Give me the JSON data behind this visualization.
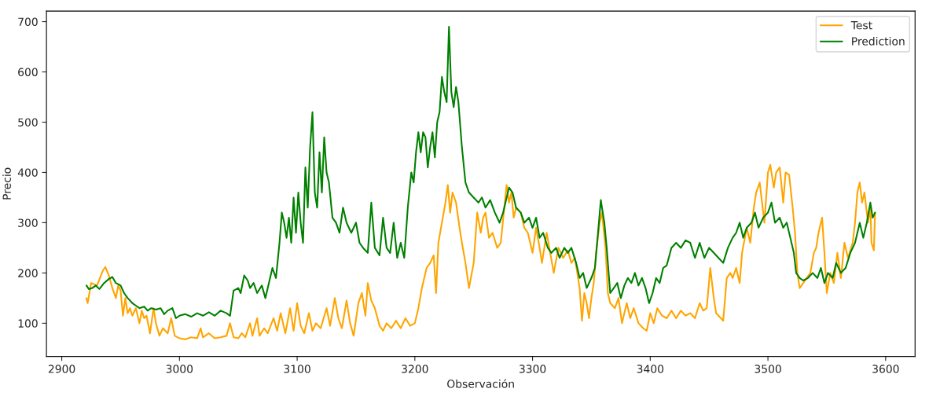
{
  "chart_data": {
    "type": "line",
    "xlabel": "Observación",
    "ylabel": "Precio",
    "xlim": [
      2887,
      3625
    ],
    "xticks": [
      2900,
      3000,
      3100,
      3200,
      3300,
      3400,
      3500,
      3600
    ],
    "ylim": [
      34,
      721
    ],
    "yticks": [
      100,
      200,
      300,
      400,
      500,
      600,
      700
    ],
    "grid": false,
    "legend": "top right",
    "marker": "none",
    "line_style": "solid",
    "series": [
      {
        "name": "Test",
        "color": "#ffa500",
        "x": [
          2921,
          2922,
          2925,
          2930,
          2935,
          2937,
          2940,
          2943,
          2946,
          2948,
          2950,
          2952,
          2954,
          2956,
          2958,
          2960,
          2963,
          2966,
          2968,
          2970,
          2972,
          2975,
          2978,
          2980,
          2983,
          2986,
          2990,
          2993,
          2996,
          3000,
          3005,
          3010,
          3015,
          3018,
          3020,
          3025,
          3030,
          3035,
          3040,
          3043,
          3046,
          3050,
          3053,
          3056,
          3060,
          3062,
          3066,
          3068,
          3072,
          3075,
          3080,
          3083,
          3086,
          3090,
          3094,
          3097,
          3100,
          3103,
          3106,
          3110,
          3113,
          3116,
          3120,
          3125,
          3128,
          3132,
          3135,
          3138,
          3142,
          3145,
          3148,
          3152,
          3155,
          3158,
          3160,
          3163,
          3166,
          3170,
          3173,
          3176,
          3180,
          3184,
          3188,
          3192,
          3196,
          3200,
          3203,
          3206,
          3210,
          3213,
          3216,
          3218,
          3220,
          3223,
          3226,
          3228,
          3230,
          3232,
          3235,
          3238,
          3240,
          3243,
          3246,
          3250,
          3253,
          3256,
          3258,
          3260,
          3263,
          3266,
          3270,
          3273,
          3276,
          3278,
          3280,
          3282,
          3284,
          3286,
          3290,
          3293,
          3296,
          3300,
          3303,
          3306,
          3308,
          3312,
          3315,
          3318,
          3322,
          3326,
          3330,
          3333,
          3336,
          3338,
          3340,
          3342,
          3344,
          3346,
          3348,
          3350,
          3352,
          3354,
          3357,
          3359,
          3362,
          3364,
          3366,
          3370,
          3373,
          3376,
          3380,
          3383,
          3386,
          3390,
          3394,
          3397,
          3400,
          3403,
          3406,
          3410,
          3414,
          3418,
          3422,
          3426,
          3430,
          3434,
          3438,
          3442,
          3445,
          3448,
          3451,
          3454,
          3456,
          3460,
          3462,
          3465,
          3468,
          3470,
          3473,
          3476,
          3478,
          3482,
          3485,
          3488,
          3490,
          3493,
          3495,
          3497,
          3500,
          3502,
          3505,
          3507,
          3510,
          3513,
          3515,
          3518,
          3521,
          3523,
          3525,
          3527,
          3530,
          3533,
          3536,
          3539,
          3541,
          3543,
          3546,
          3548,
          3550,
          3553,
          3556,
          3559,
          3562,
          3565,
          3568,
          3572,
          3574,
          3576,
          3578,
          3580,
          3582,
          3585,
          3587,
          3588,
          3590,
          3591
        ],
        "values": [
          150,
          140,
          180,
          175,
          205,
          212,
          195,
          170,
          150,
          175,
          165,
          115,
          150,
          120,
          130,
          115,
          130,
          100,
          125,
          110,
          115,
          80,
          130,
          100,
          75,
          90,
          80,
          110,
          75,
          70,
          68,
          72,
          70,
          90,
          72,
          80,
          70,
          72,
          75,
          100,
          72,
          70,
          80,
          72,
          100,
          75,
          110,
          75,
          90,
          80,
          110,
          85,
          120,
          80,
          130,
          85,
          140,
          95,
          80,
          120,
          85,
          100,
          90,
          130,
          95,
          150,
          110,
          90,
          145,
          100,
          75,
          140,
          160,
          115,
          180,
          145,
          130,
          95,
          85,
          100,
          90,
          105,
          90,
          110,
          95,
          100,
          130,
          170,
          210,
          220,
          235,
          160,
          260,
          300,
          340,
          375,
          320,
          360,
          340,
          290,
          260,
          220,
          170,
          220,
          320,
          280,
          310,
          320,
          270,
          280,
          250,
          260,
          330,
          375,
          340,
          360,
          310,
          330,
          320,
          290,
          280,
          240,
          290,
          250,
          220,
          280,
          240,
          200,
          250,
          230,
          245,
          220,
          230,
          200,
          170,
          105,
          160,
          140,
          110,
          150,
          180,
          240,
          300,
          320,
          250,
          160,
          140,
          130,
          150,
          100,
          140,
          110,
          130,
          100,
          90,
          85,
          120,
          100,
          130,
          115,
          110,
          125,
          110,
          125,
          115,
          120,
          110,
          140,
          125,
          130,
          210,
          150,
          120,
          110,
          105,
          190,
          200,
          190,
          210,
          180,
          240,
          290,
          260,
          330,
          360,
          380,
          340,
          300,
          400,
          415,
          370,
          400,
          410,
          340,
          400,
          395,
          330,
          280,
          200,
          170,
          180,
          190,
          200,
          240,
          250,
          280,
          310,
          240,
          160,
          200,
          180,
          240,
          190,
          260,
          230,
          260,
          300,
          360,
          380,
          340,
          360,
          300,
          330,
          260,
          245,
          320
        ]
      },
      {
        "name": "Prediction",
        "color": "#008000",
        "x": [
          2921,
          2923,
          2926,
          2929,
          2932,
          2936,
          2940,
          2943,
          2946,
          2950,
          2953,
          2956,
          2960,
          2963,
          2966,
          2970,
          2973,
          2976,
          2980,
          2984,
          2987,
          2990,
          2994,
          2997,
          3000,
          3005,
          3010,
          3015,
          3020,
          3025,
          3030,
          3035,
          3040,
          3043,
          3046,
          3050,
          3052,
          3055,
          3058,
          3060,
          3063,
          3066,
          3070,
          3073,
          3076,
          3079,
          3082,
          3085,
          3087,
          3089,
          3091,
          3093,
          3095,
          3097,
          3099,
          3101,
          3103,
          3105,
          3107,
          3109,
          3111,
          3113,
          3115,
          3117,
          3119,
          3121,
          3123,
          3125,
          3127,
          3130,
          3133,
          3136,
          3139,
          3142,
          3146,
          3150,
          3153,
          3156,
          3160,
          3163,
          3166,
          3170,
          3173,
          3176,
          3179,
          3182,
          3185,
          3188,
          3191,
          3194,
          3197,
          3199,
          3201,
          3203,
          3205,
          3207,
          3209,
          3211,
          3213,
          3215,
          3217,
          3219,
          3221,
          3223,
          3225,
          3227,
          3229,
          3231,
          3233,
          3235,
          3237,
          3240,
          3243,
          3246,
          3250,
          3254,
          3257,
          3260,
          3264,
          3268,
          3272,
          3275,
          3278,
          3280,
          3283,
          3286,
          3290,
          3293,
          3297,
          3300,
          3303,
          3306,
          3309,
          3313,
          3316,
          3320,
          3323,
          3327,
          3330,
          3333,
          3337,
          3340,
          3343,
          3346,
          3350,
          3353,
          3356,
          3358,
          3361,
          3363,
          3366,
          3369,
          3372,
          3375,
          3378,
          3381,
          3384,
          3387,
          3390,
          3393,
          3396,
          3399,
          3402,
          3405,
          3408,
          3411,
          3414,
          3418,
          3422,
          3426,
          3430,
          3434,
          3438,
          3442,
          3446,
          3450,
          3454,
          3458,
          3462,
          3466,
          3470,
          3473,
          3476,
          3479,
          3482,
          3486,
          3489,
          3492,
          3496,
          3500,
          3503,
          3506,
          3510,
          3513,
          3516,
          3519,
          3522,
          3524,
          3527,
          3530,
          3534,
          3538,
          3542,
          3545,
          3548,
          3551,
          3555,
          3558,
          3562,
          3566,
          3570,
          3574,
          3578,
          3581,
          3584,
          3587,
          3589,
          3591
        ],
        "values": [
          175,
          168,
          170,
          175,
          168,
          180,
          188,
          192,
          180,
          175,
          160,
          150,
          140,
          135,
          130,
          133,
          125,
          130,
          127,
          130,
          118,
          125,
          130,
          110,
          115,
          118,
          113,
          120,
          115,
          122,
          115,
          125,
          120,
          115,
          165,
          170,
          160,
          195,
          185,
          170,
          180,
          160,
          175,
          150,
          180,
          210,
          190,
          260,
          320,
          300,
          270,
          310,
          260,
          350,
          280,
          360,
          300,
          260,
          410,
          330,
          450,
          520,
          360,
          330,
          440,
          360,
          470,
          400,
          380,
          310,
          300,
          280,
          330,
          300,
          280,
          300,
          260,
          250,
          240,
          340,
          250,
          235,
          310,
          250,
          240,
          300,
          230,
          260,
          230,
          330,
          400,
          380,
          440,
          480,
          440,
          480,
          470,
          410,
          450,
          480,
          430,
          500,
          520,
          590,
          560,
          540,
          690,
          560,
          530,
          570,
          540,
          450,
          380,
          360,
          350,
          340,
          350,
          330,
          345,
          320,
          300,
          320,
          350,
          370,
          360,
          330,
          320,
          300,
          310,
          290,
          310,
          270,
          280,
          250,
          240,
          250,
          230,
          250,
          240,
          250,
          220,
          190,
          200,
          170,
          190,
          210,
          290,
          345,
          300,
          250,
          160,
          170,
          180,
          150,
          175,
          190,
          180,
          200,
          175,
          190,
          170,
          140,
          160,
          190,
          180,
          210,
          215,
          250,
          260,
          250,
          265,
          260,
          230,
          260,
          230,
          250,
          240,
          230,
          220,
          250,
          270,
          280,
          300,
          270,
          290,
          300,
          320,
          290,
          310,
          320,
          340,
          300,
          310,
          290,
          300,
          270,
          240,
          200,
          190,
          185,
          190,
          200,
          190,
          210,
          180,
          200,
          190,
          220,
          200,
          210,
          240,
          260,
          300,
          270,
          300,
          340,
          310,
          320
        ]
      }
    ]
  }
}
